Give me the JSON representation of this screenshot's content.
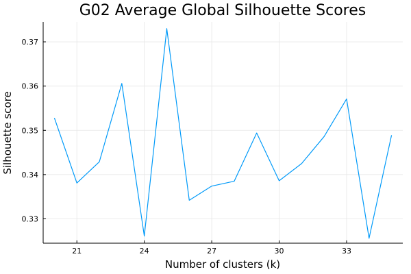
{
  "chart_data": {
    "type": "line",
    "title": "G02 Average Global Silhouette Scores",
    "xlabel": "Number of clusters (k)",
    "ylabel": "Silhouette score",
    "xlim": [
      19.5,
      35.5
    ],
    "ylim": [
      0.3245,
      0.3745
    ],
    "xticks": [
      21,
      24,
      27,
      30,
      33
    ],
    "yticks": [
      0.33,
      0.34,
      0.35,
      0.36,
      0.37
    ],
    "ytick_labels": [
      "0.33",
      "0.34",
      "0.35",
      "0.36",
      "0.37"
    ],
    "grid": true,
    "legend": "none",
    "series": [
      {
        "color": "#009af9",
        "x": [
          20,
          21,
          22,
          23,
          24,
          25,
          26,
          27,
          28,
          29,
          30,
          31,
          32,
          33,
          34,
          35
        ],
        "y": [
          0.3528,
          0.3381,
          0.3429,
          0.3606,
          0.3261,
          0.373,
          0.3342,
          0.3374,
          0.3385,
          0.3494,
          0.3386,
          0.3425,
          0.3486,
          0.3571,
          0.3256,
          0.3489
        ]
      }
    ]
  }
}
